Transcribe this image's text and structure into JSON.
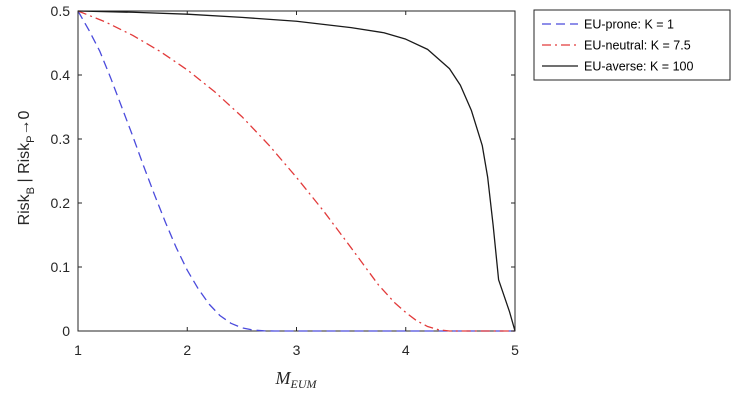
{
  "chart_data": {
    "type": "line",
    "title": "",
    "xlabel": {
      "main": "M",
      "sub": "EUM"
    },
    "ylabel": {
      "p1": "Risk",
      "s1": "B",
      "p2": " | Risk",
      "s2": "P",
      "p3": "→0"
    },
    "xlim": [
      1,
      5
    ],
    "ylim": [
      0,
      0.5
    ],
    "xticks": [
      1,
      2,
      3,
      4,
      5
    ],
    "yticks": [
      0,
      0.1,
      0.2,
      0.3,
      0.4,
      0.5
    ],
    "xtick_labels": [
      "1",
      "2",
      "3",
      "4",
      "5"
    ],
    "ytick_labels": [
      "0",
      "0.1",
      "0.2",
      "0.3",
      "0.4",
      "0.5"
    ],
    "grid": false,
    "legend_position": "outside-top-right",
    "series": [
      {
        "name": "EU-prone: K = 1",
        "color": "#4b4bdc",
        "style": "dashed",
        "x": [
          1.0,
          1.1,
          1.2,
          1.3,
          1.4,
          1.5,
          1.6,
          1.7,
          1.8,
          1.9,
          2.0,
          2.1,
          2.2,
          2.3,
          2.4,
          2.5,
          2.6,
          2.7,
          2.8,
          3.0,
          3.5,
          4.0,
          4.5,
          5.0
        ],
        "y": [
          0.5,
          0.47,
          0.437,
          0.395,
          0.35,
          0.305,
          0.258,
          0.213,
          0.17,
          0.13,
          0.095,
          0.066,
          0.042,
          0.024,
          0.012,
          0.005,
          0.0015,
          0.0003,
          0.0,
          0.0,
          0.0,
          0.0,
          0.0,
          0.0
        ]
      },
      {
        "name": "EU-neutral: K = 7.5",
        "color": "#e23b3b",
        "style": "dashdot",
        "x": [
          1.0,
          1.25,
          1.5,
          1.75,
          2.0,
          2.25,
          2.5,
          2.75,
          3.0,
          3.25,
          3.5,
          3.75,
          3.9,
          4.0,
          4.1,
          4.2,
          4.3,
          4.4,
          4.5,
          5.0
        ],
        "y": [
          0.5,
          0.483,
          0.462,
          0.437,
          0.408,
          0.374,
          0.335,
          0.29,
          0.24,
          0.187,
          0.13,
          0.072,
          0.044,
          0.029,
          0.016,
          0.007,
          0.002,
          0.0,
          0.0,
          0.0
        ]
      },
      {
        "name": "EU-averse: K = 100",
        "color": "#1a1a1a",
        "style": "solid",
        "x": [
          1.0,
          1.5,
          2.0,
          2.5,
          3.0,
          3.5,
          3.8,
          4.0,
          4.2,
          4.4,
          4.5,
          4.6,
          4.7,
          4.75,
          4.8,
          4.85,
          4.9,
          4.95,
          5.0
        ],
        "y": [
          0.5,
          0.498,
          0.495,
          0.49,
          0.484,
          0.474,
          0.466,
          0.456,
          0.44,
          0.41,
          0.384,
          0.345,
          0.29,
          0.24,
          0.165,
          0.08,
          0.055,
          0.03,
          0.0
        ]
      }
    ]
  }
}
